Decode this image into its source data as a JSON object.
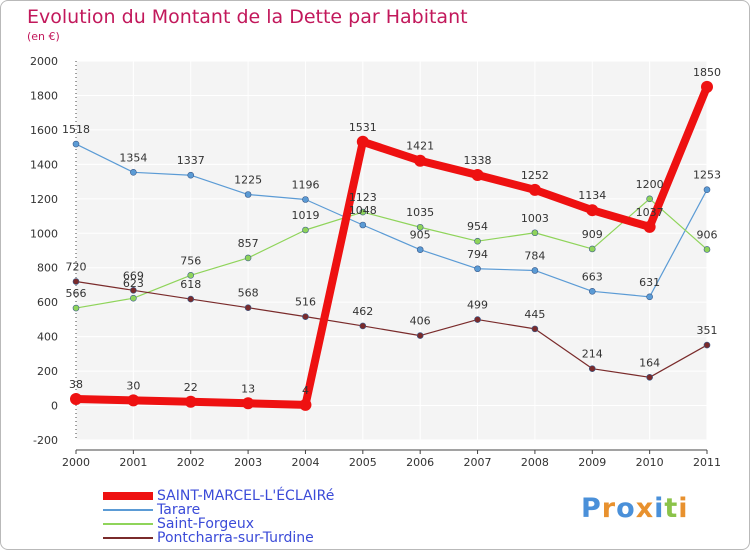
{
  "chart_data": {
    "type": "line",
    "title": "Evolution du Montant de la Dette par Habitant",
    "subtitle": "(en €)",
    "xlabel": "",
    "ylabel": "",
    "ylim": [
      -200,
      2000
    ],
    "yticks": [
      -200,
      0,
      200,
      400,
      600,
      800,
      1000,
      1200,
      1400,
      1600,
      1800,
      2000
    ],
    "x": [
      "2000",
      "2001",
      "2002",
      "2003",
      "2004",
      "2005",
      "2006",
      "2007",
      "2008",
      "2009",
      "2010",
      "2011"
    ],
    "grid": true,
    "legend_position": "bottom-left",
    "series": [
      {
        "name": "SAINT-MARCEL-L'ÉCLAIRé",
        "color": "#ee1111",
        "values": [
          38,
          30,
          22,
          13,
          4,
          1531,
          1421,
          1338,
          1252,
          1134,
          1037,
          1850
        ],
        "labels": [
          "38",
          "30",
          "22",
          "13",
          "4",
          "1531",
          "1421",
          "1338",
          "1252",
          "1134",
          "1037",
          "1850"
        ]
      },
      {
        "name": "Tarare",
        "color": "#5b9bd5",
        "values": [
          1518,
          1354,
          1337,
          1225,
          1196,
          1048,
          905,
          794,
          784,
          663,
          631,
          1253
        ],
        "labels": [
          "1518",
          "1354",
          "1337",
          "1225",
          "1196",
          "1048",
          "905",
          "794",
          "784",
          "663",
          "631",
          "1253"
        ]
      },
      {
        "name": "Saint-Forgeux",
        "color": "#8fd45a",
        "values": [
          566,
          623,
          756,
          857,
          1019,
          1123,
          1035,
          954,
          1003,
          909,
          1200,
          906
        ],
        "labels": [
          "566",
          "623",
          "756",
          "857",
          "1019",
          "1123",
          "1035",
          "954",
          "1003",
          "909",
          "1200",
          "906"
        ]
      },
      {
        "name": "Pontcharra-sur-Turdine",
        "color": "#7a2b2b",
        "values": [
          720,
          669,
          618,
          568,
          516,
          462,
          406,
          499,
          445,
          214,
          164,
          351
        ],
        "labels": [
          "720",
          "669",
          "618",
          "568",
          "516",
          "462",
          "406",
          "499",
          "445",
          "214",
          "164",
          "351"
        ]
      }
    ]
  },
  "legend": {
    "items": [
      "SAINT-MARCEL-L'ÉCLAIRé",
      "Tarare",
      "Saint-Forgeux",
      "Pontcharra-sur-Turdine"
    ]
  },
  "logo": {
    "text": "Proxiti",
    "colors": [
      "#4a90d9",
      "#e8912e",
      "#4a90d9",
      "#e8912e",
      "#4a90d9",
      "#8bc34a",
      "#e8912e"
    ]
  }
}
